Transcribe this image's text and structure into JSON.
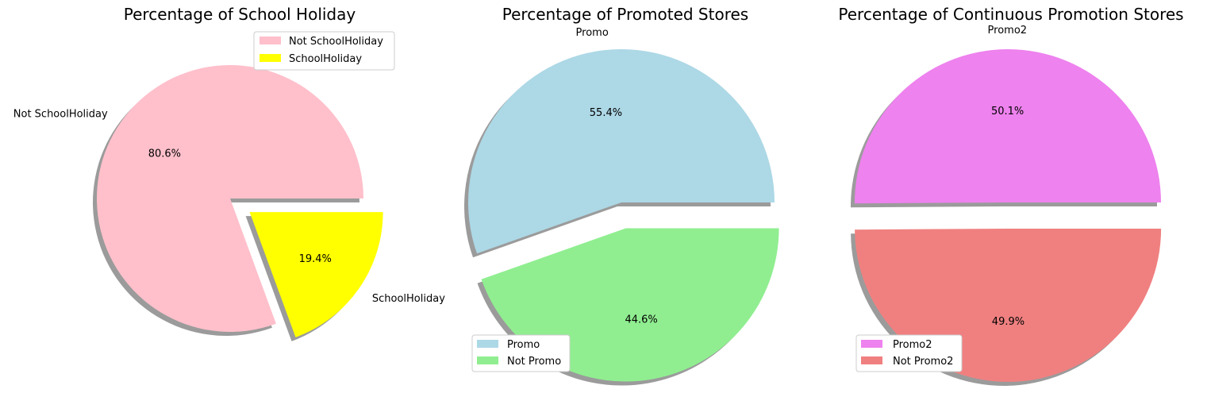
{
  "chart_data": [
    {
      "type": "pie",
      "title": "Percentage of School Holiday",
      "slices": [
        {
          "label": "Not SchoolHoliday",
          "value": 80.6,
          "pct_label": "80.6%",
          "color": "#ffc0cb",
          "explode": false
        },
        {
          "label": "SchoolHoliday",
          "value": 19.4,
          "pct_label": "19.4%",
          "color": "#ffff00",
          "explode": true
        }
      ],
      "legend": {
        "placement": "upper-right",
        "entries": [
          "Not SchoolHoliday",
          "SchoolHoliday"
        ]
      },
      "shadow": true,
      "start_angle_deg": 0
    },
    {
      "type": "pie",
      "title": "Percentage of Promoted Stores",
      "slices": [
        {
          "label": "Promo",
          "value": 55.4,
          "pct_label": "55.4%",
          "color": "#add8e6",
          "explode": false
        },
        {
          "label": "Not Promo",
          "value": 44.6,
          "pct_label": "44.6%",
          "color": "#90ee90",
          "explode": true
        }
      ],
      "legend": {
        "placement": "lower-left",
        "entries": [
          "Promo",
          "Not Promo"
        ]
      },
      "shadow": true,
      "start_angle_deg": 0
    },
    {
      "type": "pie",
      "title": "Percentage of Continuous Promotion Stores",
      "slices": [
        {
          "label": "Promo2",
          "value": 50.1,
          "pct_label": "50.1%",
          "color": "#ee82ee",
          "explode": false
        },
        {
          "label": "Not Promo2",
          "value": 49.9,
          "pct_label": "49.9%",
          "color": "#f08080",
          "explode": true
        }
      ],
      "legend": {
        "placement": "lower-left",
        "entries": [
          "Promo2",
          "Not Promo2"
        ]
      },
      "shadow": true,
      "start_angle_deg": 0
    }
  ]
}
